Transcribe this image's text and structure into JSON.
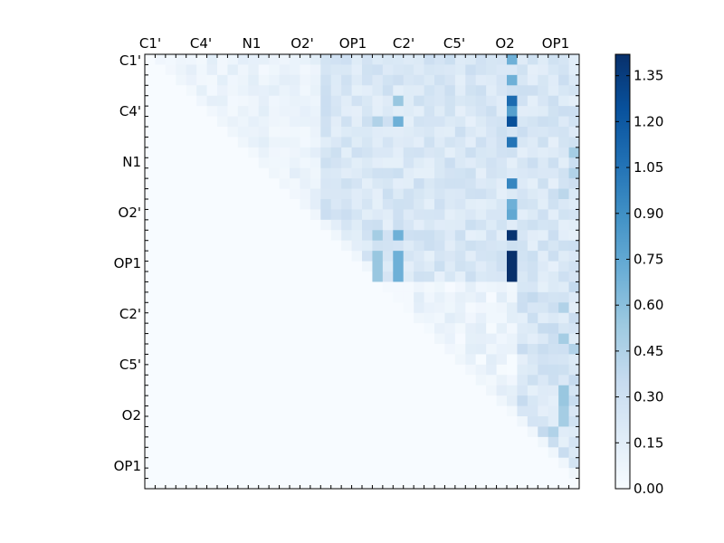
{
  "chart_data": {
    "type": "heatmap",
    "title": "",
    "xlabel": "",
    "ylabel": "",
    "x_tick_labels": [
      "C1'",
      "C4'",
      "N1",
      "O2'",
      "OP1",
      "C2'",
      "C5'",
      "O2",
      "OP1"
    ],
    "y_tick_labels": [
      "C1'",
      "C4'",
      "N1",
      "O2'",
      "OP1",
      "C2'",
      "C5'",
      "O2",
      "OP1"
    ],
    "grid_size": 42,
    "colormap": "Blues",
    "color_low": "#f7fbff",
    "color_high": "#08306b",
    "vmin": 0.0,
    "vmax": 1.42,
    "colorbar_ticks": [
      "0.00",
      "0.15",
      "0.30",
      "0.45",
      "0.60",
      "0.75",
      "0.90",
      "1.05",
      "1.20",
      "1.35"
    ],
    "colorbar_tick_values": [
      0.0,
      0.15,
      0.3,
      0.45,
      0.6,
      0.75,
      0.9,
      1.05,
      1.2,
      1.35
    ],
    "grid": false,
    "note_values": "upper-triangular matrix; values estimated from colour intensity",
    "hotspots": [
      {
        "row": 0,
        "col": 35,
        "value": 0.7
      },
      {
        "row": 2,
        "col": 35,
        "value": 0.7
      },
      {
        "row": 4,
        "col": 35,
        "value": 1.1
      },
      {
        "row": 5,
        "col": 35,
        "value": 0.8
      },
      {
        "row": 6,
        "col": 35,
        "value": 1.25
      },
      {
        "row": 8,
        "col": 35,
        "value": 1.05
      },
      {
        "row": 12,
        "col": 35,
        "value": 0.95
      },
      {
        "row": 14,
        "col": 35,
        "value": 0.7
      },
      {
        "row": 15,
        "col": 35,
        "value": 0.75
      },
      {
        "row": 17,
        "col": 35,
        "value": 1.4
      },
      {
        "row": 19,
        "col": 35,
        "value": 1.42
      },
      {
        "row": 20,
        "col": 35,
        "value": 1.42
      },
      {
        "row": 21,
        "col": 35,
        "value": 1.42
      },
      {
        "row": 6,
        "col": 24,
        "value": 0.7
      },
      {
        "row": 17,
        "col": 24,
        "value": 0.7
      },
      {
        "row": 19,
        "col": 24,
        "value": 0.7
      },
      {
        "row": 20,
        "col": 24,
        "value": 0.7
      },
      {
        "row": 21,
        "col": 24,
        "value": 0.7
      },
      {
        "row": 19,
        "col": 22,
        "value": 0.55
      },
      {
        "row": 20,
        "col": 22,
        "value": 0.55
      },
      {
        "row": 21,
        "col": 22,
        "value": 0.55
      },
      {
        "row": 17,
        "col": 22,
        "value": 0.5
      },
      {
        "row": 4,
        "col": 24,
        "value": 0.55
      },
      {
        "row": 6,
        "col": 22,
        "value": 0.45
      },
      {
        "row": 9,
        "col": 41,
        "value": 0.5
      },
      {
        "row": 11,
        "col": 41,
        "value": 0.45
      },
      {
        "row": 13,
        "col": 40,
        "value": 0.4
      },
      {
        "row": 24,
        "col": 40,
        "value": 0.45
      },
      {
        "row": 27,
        "col": 40,
        "value": 0.5
      },
      {
        "row": 28,
        "col": 41,
        "value": 0.45
      },
      {
        "row": 32,
        "col": 40,
        "value": 0.55
      },
      {
        "row": 33,
        "col": 40,
        "value": 0.55
      },
      {
        "row": 34,
        "col": 40,
        "value": 0.5
      },
      {
        "row": 35,
        "col": 40,
        "value": 0.5
      },
      {
        "row": 36,
        "col": 39,
        "value": 0.45
      }
    ]
  }
}
